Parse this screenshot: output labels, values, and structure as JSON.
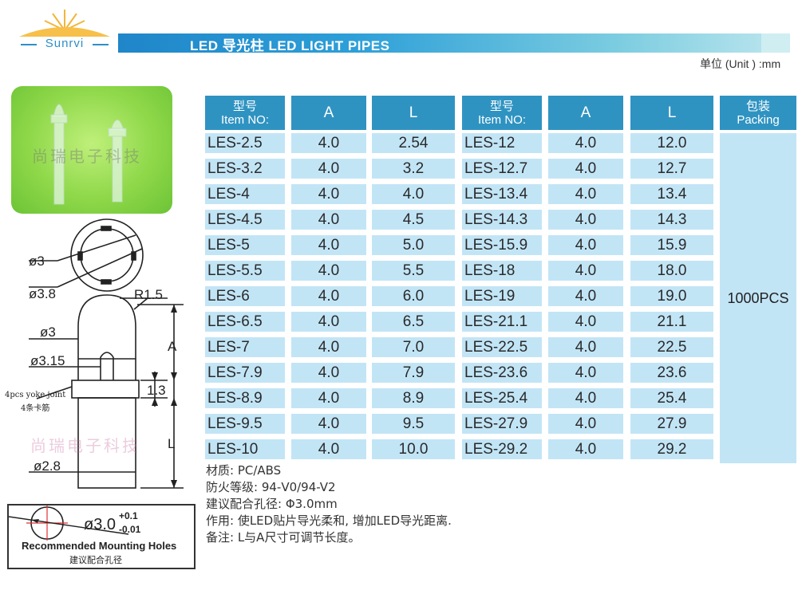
{
  "header": {
    "logo_text": "Sunrvi",
    "title": "LED 导光柱 LED LIGHT PIPES",
    "unit": "单位 (Unit ) :mm"
  },
  "photo": {
    "watermark": "尚瑞电子科技"
  },
  "drawing": {
    "labels": {
      "d3_top": "ø3",
      "d38": "ø3.8",
      "r15": "R1.5",
      "d3_mid": "ø3",
      "a": "A",
      "d315": "ø3.15",
      "d13": "1.3",
      "yoke_en": "4pcs yoke joint",
      "yoke_cn": "4条卡筋",
      "l": "L",
      "d28": "ø2.8"
    },
    "watermark": "尚瑞电子科技",
    "mount": {
      "dim_main": "ø3.0",
      "tol_plus": "+0.1",
      "tol_minus": "-0.01",
      "label_en": "Recommended Mounting Holes",
      "label_cn": "建议配合孔径"
    }
  },
  "table": {
    "headers": [
      {
        "line1": "型号",
        "line2": "Item NO:"
      },
      {
        "line1": "A",
        "line2": ""
      },
      {
        "line1": "L",
        "line2": ""
      },
      {
        "line1": "型号",
        "line2": "Item NO:"
      },
      {
        "line1": "A",
        "line2": ""
      },
      {
        "line1": "L",
        "line2": ""
      },
      {
        "line1": "包装",
        "line2": "Packing"
      }
    ],
    "rows": [
      [
        "LES-2.5",
        "4.0",
        "2.54",
        "LES-12",
        "4.0",
        "12.0"
      ],
      [
        "LES-3.2",
        "4.0",
        "3.2",
        "LES-12.7",
        "4.0",
        "12.7"
      ],
      [
        "LES-4",
        "4.0",
        "4.0",
        "LES-13.4",
        "4.0",
        "13.4"
      ],
      [
        "LES-4.5",
        "4.0",
        "4.5",
        "LES-14.3",
        "4.0",
        "14.3"
      ],
      [
        "LES-5",
        "4.0",
        "5.0",
        "LES-15.9",
        "4.0",
        "15.9"
      ],
      [
        "LES-5.5",
        "4.0",
        "5.5",
        "LES-18",
        "4.0",
        "18.0"
      ],
      [
        "LES-6",
        "4.0",
        "6.0",
        "LES-19",
        "4.0",
        "19.0"
      ],
      [
        "LES-6.5",
        "4.0",
        "6.5",
        "LES-21.1",
        "4.0",
        "21.1"
      ],
      [
        "LES-7",
        "4.0",
        "7.0",
        "LES-22.5",
        "4.0",
        "22.5"
      ],
      [
        "LES-7.9",
        "4.0",
        "7.9",
        "LES-23.6",
        "4.0",
        "23.6"
      ],
      [
        "LES-8.9",
        "4.0",
        "8.9",
        "LES-25.4",
        "4.0",
        "25.4"
      ],
      [
        "LES-9.5",
        "4.0",
        "9.5",
        "LES-27.9",
        "4.0",
        "27.9"
      ],
      [
        "LES-10",
        "4.0",
        "10.0",
        "LES-29.2",
        "4.0",
        "29.2"
      ]
    ],
    "packing": "1000PCS"
  },
  "notes": [
    "材质:  PC/ABS",
    "防火等级:  94-V0/94-V2",
    "建议配合孔径:  Φ3.0mm",
    "作用:  使LED贴片导光柔和, 增加LED导光距离.",
    "备注:  L与A尺寸可调节长度。"
  ],
  "colors": {
    "header_blue": "#2f93c2",
    "cell_blue": "#c2e5f6",
    "photo_green": "#8fd84a",
    "banner_gradient_start": "#1f86c9"
  }
}
